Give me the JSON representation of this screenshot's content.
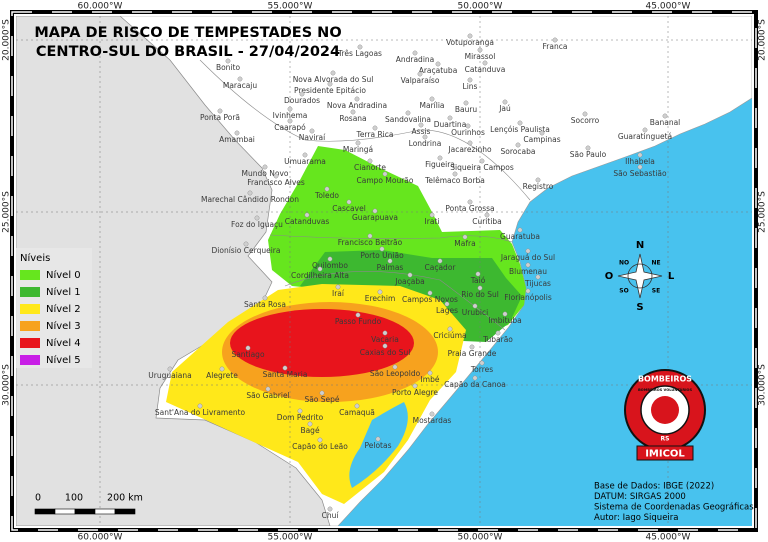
{
  "title": [
    "MAPA DE RISCO DE TEMPESTADES NO",
    "CENTRO-SUL DO BRASIL - 27/04/2024"
  ],
  "longitude_labels": [
    "60.000°W",
    "55.000°W",
    "50.000°W",
    "45.000°W"
  ],
  "latitude_labels": [
    "20.000°S",
    "25.000°S",
    "30.000°S"
  ],
  "legend": {
    "title": "Níveis",
    "items": [
      {
        "label": "Nível 0",
        "color": "#66e61e"
      },
      {
        "label": "Nível 1",
        "color": "#3db830"
      },
      {
        "label": "Nível 2",
        "color": "#ffe81a"
      },
      {
        "label": "Nível 3",
        "color": "#f7a21e"
      },
      {
        "label": "Nível 4",
        "color": "#e8141c"
      },
      {
        "label": "Nível 5",
        "color": "#c81ee6"
      }
    ]
  },
  "compass": [
    "N",
    "S",
    "L",
    "O",
    "NO",
    "NE",
    "SO",
    "SE"
  ],
  "scale": [
    "0",
    "100",
    "200 km"
  ],
  "credits": [
    "Base de Dados: IBGE (2022)",
    "DATUM: SIRGAS 2000",
    "Sistema de Coordenadas Geográficas",
    "Autor: Iago Siqueira"
  ],
  "badge": [
    "BOMBEIROS",
    "BOMBEIROS VOLUNTÁRIOS",
    "RS",
    "IMICOL"
  ],
  "cities": [
    "Votuporanga",
    "Franca",
    "Mirassol",
    "Três Lagoas",
    "Andradina",
    "Araçatuba",
    "Catanduva",
    "Bonito",
    "Maracaju",
    "Nova Alvorada do Sul",
    "Presidente Epitácio",
    "Valparaíso",
    "Lins",
    "Dourados",
    "Nova Andradina",
    "Marília",
    "Bauru",
    "Jaú",
    "Ponta Porã",
    "Ivinhema",
    "Rosana",
    "Sandovalina",
    "Duartina",
    "Caarapó",
    "Lençóis Paulista",
    "Socorro",
    "Bananal",
    "Amambai",
    "Naviraí",
    "Terra Rica",
    "Assis",
    "Ourinhos",
    "Campinas",
    "Guaratinguetá",
    "Maringá",
    "Londrina",
    "Jacarezinho",
    "Sorocaba",
    "São Paulo",
    "Umuarama",
    "Figueira",
    "Siqueira Campos",
    "Ilhabela",
    "São Sebastião",
    "Mundo Novo",
    "Cianorte",
    "Francisco Alves",
    "Campo Mourão",
    "Telêmaco Borba",
    "Registro",
    "Toledo",
    "Marechal Cândido Rondon",
    "Cascavel",
    "Ponta Grossa",
    "Foz do Iguaçu",
    "Catanduvas",
    "Guarapuava",
    "Irati",
    "Curitiba",
    "Guaratuba",
    "Dionísio Cerqueira",
    "Francisco Beltrão",
    "Mafra",
    "Porto União",
    "Jaraguá do Sul",
    "Quilombo",
    "Palmas",
    "Caçador",
    "Blumenau",
    "Cordilheira Alta",
    "Taió",
    "Tijucas",
    "Iraí",
    "Joaçaba",
    "Rio do Sul",
    "Florianópolis",
    "Erechim",
    "Campos Novos",
    "Santa Rosa",
    "Lages",
    "Urubici",
    "Imbituba",
    "Passo Fundo",
    "Tubarão",
    "Criciúma",
    "Santiago",
    "Vacaria",
    "Caxias do Sul",
    "Praia Grande",
    "Uruguaiana",
    "Alegrete",
    "Santa Maria",
    "São Leopoldo",
    "Torres",
    "Imbé",
    "Capão da Canoa",
    "São Gabriel",
    "São Sepé",
    "Porto Alegre",
    "Sant'Ana do Livramento",
    "Dom Pedrito",
    "Camaquã",
    "Mostardas",
    "Bagé",
    "Capão do Leão",
    "Pelotas",
    "Chuí"
  ]
}
